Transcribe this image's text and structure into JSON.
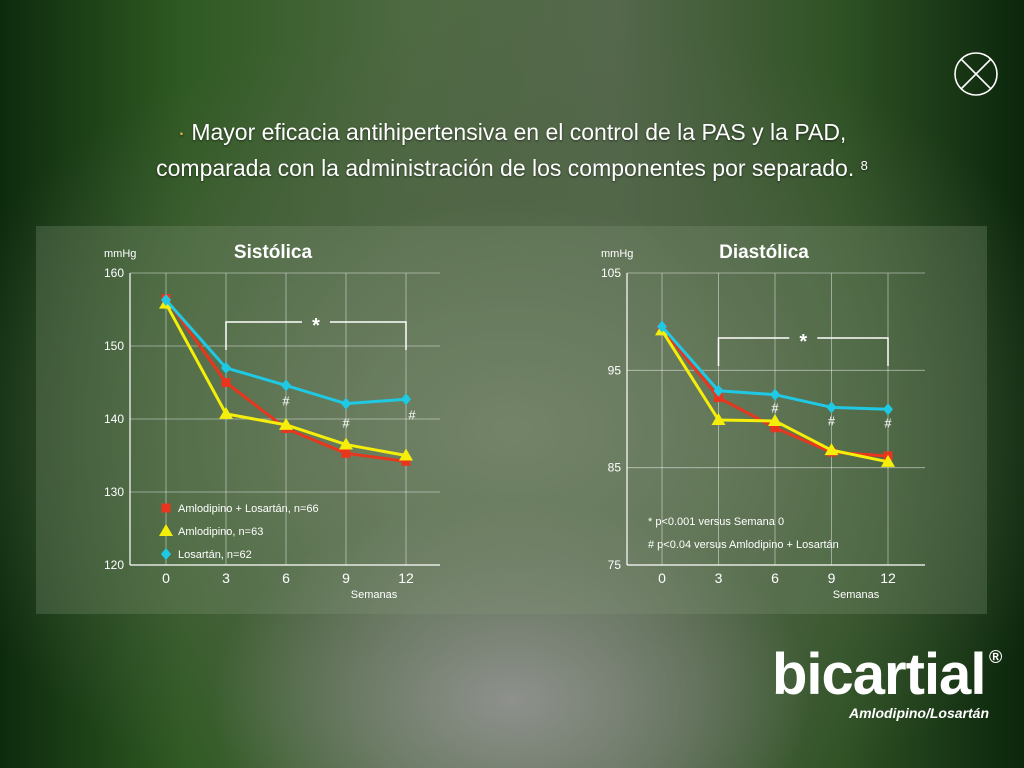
{
  "headline": {
    "bullet": "·",
    "line1": "Mayor eficacia antihipertensiva en el control de la PAS y la PAD,",
    "line2": "comparada con la administración de los componentes por separado.",
    "ref": "8"
  },
  "close_icon": "close-circle-icon",
  "colors": {
    "combo": "#e8361e",
    "amlodipino": "#f4ee0a",
    "losartan": "#1fc9e3"
  },
  "chart_data": [
    {
      "type": "line",
      "title": "Sistólica",
      "ylabel": "mmHg",
      "xlabel": "Semanas",
      "x": [
        0,
        3,
        6,
        9,
        12
      ],
      "ylim": [
        120,
        160
      ],
      "yticks": [
        120,
        130,
        140,
        150,
        160
      ],
      "grid": true,
      "legend_position": "bottom-left",
      "series": [
        {
          "name": "Amlodipino + Losartán, n=66",
          "marker": "square",
          "values": [
            156.5,
            145,
            138.7,
            135.3,
            134.2
          ]
        },
        {
          "name": "Amlodipino, n=63",
          "marker": "triangle",
          "values": [
            155.8,
            140.7,
            139.2,
            136.5,
            135
          ]
        },
        {
          "name": "Losartán, n=62",
          "marker": "diamond",
          "values": [
            156.3,
            147,
            144.6,
            142.1,
            142.7
          ]
        }
      ],
      "bracket": {
        "from": 3,
        "to": 12,
        "label": "*"
      },
      "hash_marks": [
        {
          "x": 6,
          "label": "#"
        },
        {
          "x": 9,
          "label": "#"
        },
        {
          "x": 12,
          "label": "#"
        }
      ]
    },
    {
      "type": "line",
      "title": "Diastólica",
      "ylabel": "mmHg",
      "xlabel": "Semanas",
      "x": [
        0,
        3,
        6,
        9,
        12
      ],
      "ylim": [
        75,
        105
      ],
      "yticks": [
        75,
        85,
        95,
        105
      ],
      "grid": true,
      "series": [
        {
          "name": "Amlodipino + Losartán",
          "marker": "square",
          "values": [
            99.3,
            92.2,
            89.1,
            86.6,
            86.2
          ]
        },
        {
          "name": "Amlodipino",
          "marker": "triangle",
          "values": [
            99.1,
            89.9,
            89.8,
            86.8,
            85.6
          ]
        },
        {
          "name": "Losartán",
          "marker": "diamond",
          "values": [
            99.5,
            92.9,
            92.5,
            91.2,
            91.0
          ]
        }
      ],
      "bracket": {
        "from": 3,
        "to": 12,
        "label": "*"
      },
      "hash_marks": [
        {
          "x": 6,
          "label": "#"
        },
        {
          "x": 9,
          "label": "#"
        },
        {
          "x": 12,
          "label": "#"
        }
      ],
      "notes": [
        "* p<0.001 versus Semana 0",
        "# p<0.04 versus Amlodipino + Losartán"
      ]
    }
  ],
  "logo": {
    "word": "bicartial",
    "reg": "®",
    "subtitle": "Amlodipino/Losartán"
  }
}
